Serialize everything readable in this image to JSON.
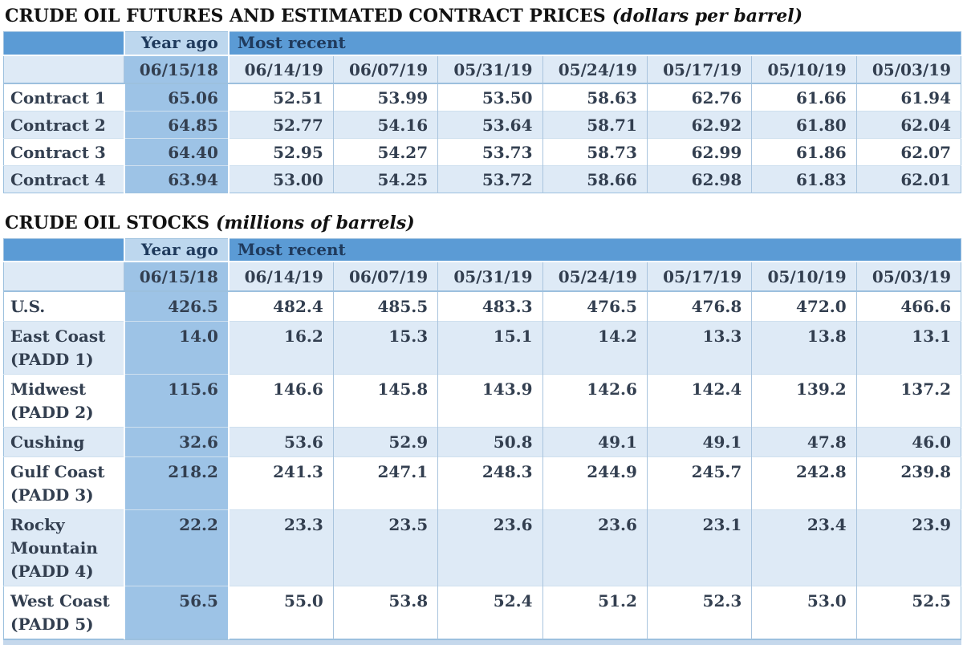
{
  "colors": {
    "header_blue": "#5b9bd5",
    "year_ago_header_bg": "#bdd7ee",
    "year_ago_column_bg": "#9dc3e6",
    "light_row_bg": "#deeaf6",
    "white_row_bg": "#ffffff",
    "header_text": "#1f3a5c",
    "body_text": "#333f50",
    "grid_line": "#a9c4de"
  },
  "tables": [
    {
      "title": "CRUDE OIL FUTURES AND ESTIMATED CONTRACT PRICES",
      "unit": "(dollars per barrel)",
      "group_headers": {
        "year_ago": "Year ago",
        "most_recent": "Most recent"
      },
      "date_columns": [
        "06/15/18",
        "06/14/19",
        "06/07/19",
        "05/31/19",
        "05/24/19",
        "05/17/19",
        "05/10/19",
        "05/03/19"
      ],
      "rows": [
        {
          "label_lines": [
            "Contract 1"
          ],
          "values": [
            "65.06",
            "52.51",
            "53.99",
            "53.50",
            "58.63",
            "62.76",
            "61.66",
            "61.94"
          ]
        },
        {
          "label_lines": [
            "Contract 2"
          ],
          "values": [
            "64.85",
            "52.77",
            "54.16",
            "53.64",
            "58.71",
            "62.92",
            "61.80",
            "62.04"
          ]
        },
        {
          "label_lines": [
            "Contract 3"
          ],
          "values": [
            "64.40",
            "52.95",
            "54.27",
            "53.73",
            "58.73",
            "62.99",
            "61.86",
            "62.07"
          ]
        },
        {
          "label_lines": [
            "Contract 4"
          ],
          "values": [
            "63.94",
            "53.00",
            "54.25",
            "53.72",
            "58.66",
            "62.98",
            "61.83",
            "62.01"
          ]
        }
      ]
    },
    {
      "title": "CRUDE OIL STOCKS",
      "unit": "(millions of barrels)",
      "group_headers": {
        "year_ago": "Year ago",
        "most_recent": "Most recent"
      },
      "date_columns": [
        "06/15/18",
        "06/14/19",
        "06/07/19",
        "05/31/19",
        "05/24/19",
        "05/17/19",
        "05/10/19",
        "05/03/19"
      ],
      "rows": [
        {
          "label_lines": [
            "U.S."
          ],
          "values": [
            "426.5",
            "482.4",
            "485.5",
            "483.3",
            "476.5",
            "476.8",
            "472.0",
            "466.6"
          ]
        },
        {
          "label_lines": [
            "East Coast",
            "(PADD 1)"
          ],
          "values": [
            "14.0",
            "16.2",
            "15.3",
            "15.1",
            "14.2",
            "13.3",
            "13.8",
            "13.1"
          ]
        },
        {
          "label_lines": [
            "Midwest",
            "(PADD 2)"
          ],
          "values": [
            "115.6",
            "146.6",
            "145.8",
            "143.9",
            "142.6",
            "142.4",
            "139.2",
            "137.2"
          ]
        },
        {
          "label_lines": [
            "Cushing"
          ],
          "values": [
            "32.6",
            "53.6",
            "52.9",
            "50.8",
            "49.1",
            "49.1",
            "47.8",
            "46.0"
          ]
        },
        {
          "label_lines": [
            "Gulf Coast",
            "(PADD 3)"
          ],
          "values": [
            "218.2",
            "241.3",
            "247.1",
            "248.3",
            "244.9",
            "245.7",
            "242.8",
            "239.8"
          ]
        },
        {
          "label_lines": [
            "Rocky",
            "Mountain",
            "(PADD 4)"
          ],
          "values": [
            "22.2",
            "23.3",
            "23.5",
            "23.6",
            "23.6",
            "23.1",
            "23.4",
            "23.9"
          ]
        },
        {
          "label_lines": [
            "West Coast",
            "(PADD 5)"
          ],
          "values": [
            "56.5",
            "55.0",
            "53.8",
            "52.4",
            "51.2",
            "52.3",
            "53.0",
            "52.5"
          ]
        }
      ]
    }
  ]
}
